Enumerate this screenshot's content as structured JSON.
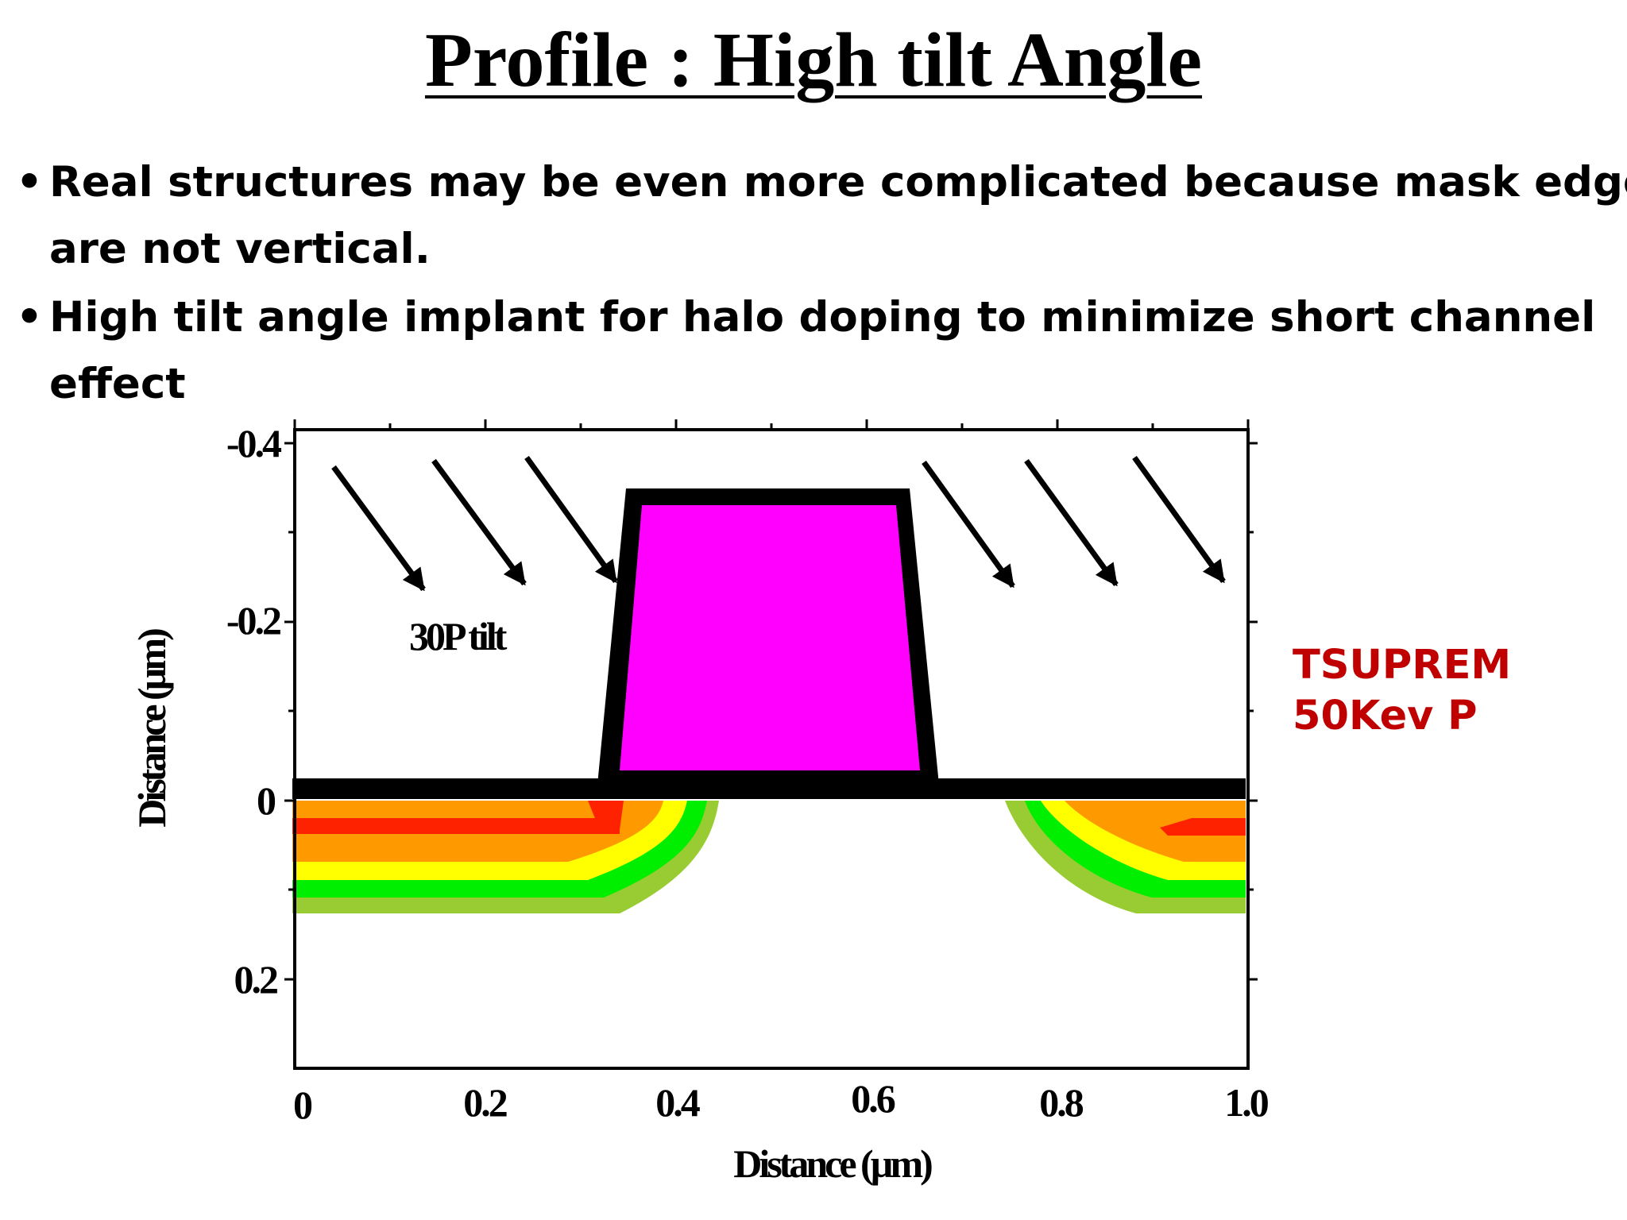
{
  "slide": {
    "title": "Profile : High tilt Angle",
    "bullets": [
      {
        "symbol": "•",
        "line1": "Real structures may be even more complicated because mask edges",
        "line2": "are not vertical."
      },
      {
        "symbol": "•",
        "line1": "High tilt angle implant for halo doping to minimize short channel",
        "line2": "effect"
      }
    ],
    "side_label": {
      "line1": "TSUPREM",
      "line2": "50Kev  P",
      "color": "#c00000"
    }
  },
  "figure": {
    "x_axis": {
      "label": "Distance (µm)",
      "ticks": [
        "0",
        "0.2",
        "0.4",
        "0.6",
        "0.8",
        "1.0"
      ]
    },
    "y_axis": {
      "label": "Distance (µm)",
      "ticks": [
        "-0.4",
        "-0.2",
        "0",
        "0.2"
      ]
    },
    "annotation": "30P tilt",
    "colors": {
      "mask": "#ff00ff",
      "outline": "#000000",
      "doping_bands": [
        "#ff2200",
        "#ff9900",
        "#ffff00",
        "#00ee00",
        "#99cc33"
      ]
    }
  }
}
